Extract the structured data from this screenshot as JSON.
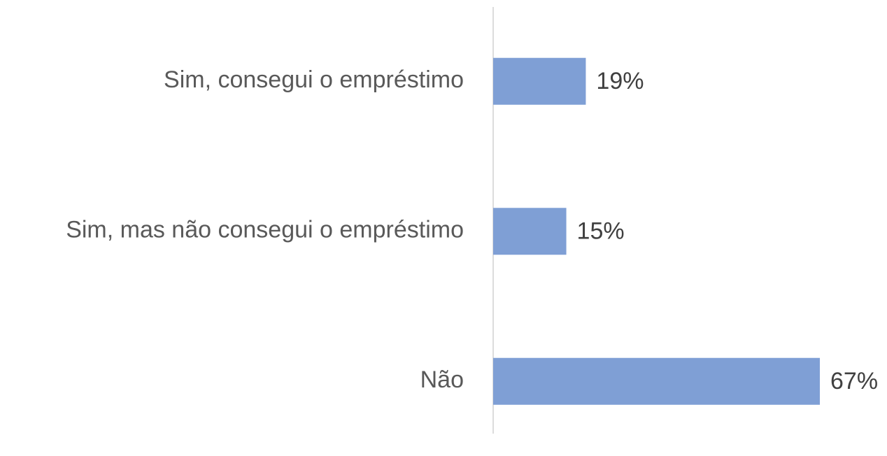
{
  "chart_data": {
    "type": "barh",
    "categories": [
      "Sim, consegui o empréstimo",
      "Sim, mas não consegui o empréstimo",
      "Não"
    ],
    "values": [
      19,
      15,
      67
    ],
    "value_labels": [
      "19%",
      "15%",
      "67%"
    ],
    "color": "#7f9fd5"
  }
}
